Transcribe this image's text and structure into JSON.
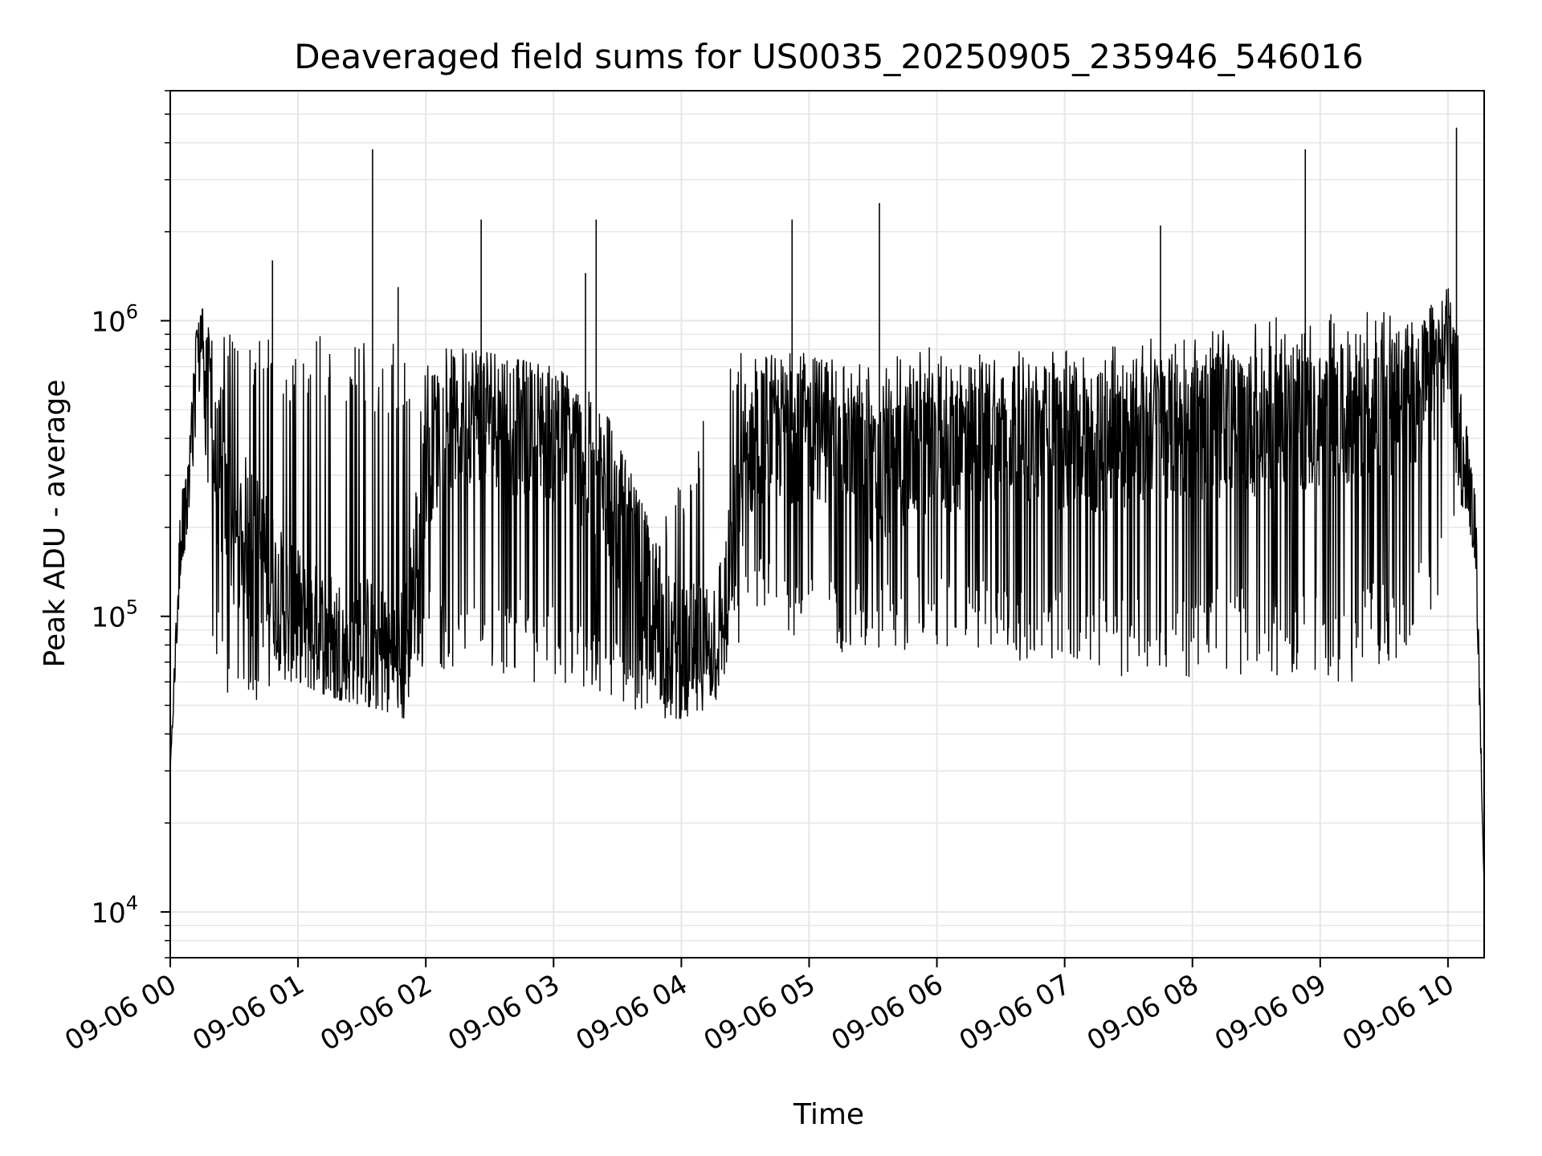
{
  "chart_data": {
    "type": "line",
    "title": "Deaveraged field sums for US0035_20250905_235946_546016",
    "xlabel": "Time",
    "ylabel": "Peak ADU - average",
    "yscale": "log",
    "ylim": [
      7000,
      6000000
    ],
    "xlim": [
      "09-06 00:00",
      "09-06 10:17"
    ],
    "x_ticks": [
      "09-06 00",
      "09-06 01",
      "09-06 02",
      "09-06 03",
      "09-06 04",
      "09-06 05",
      "09-06 06",
      "09-06 07",
      "09-06 08",
      "09-06 09",
      "09-06 10"
    ],
    "y_ticks": [
      {
        "value": 10000,
        "base": "10",
        "exp": "4"
      },
      {
        "value": 100000,
        "base": "10",
        "exp": "5"
      },
      {
        "value": 1000000,
        "base": "10",
        "exp": "6"
      }
    ],
    "grid": true,
    "line_color": "#000000",
    "grid_color": "#e6e6e6",
    "series": [
      {
        "x": [
          "09-06 00:00",
          "09-06 00:05",
          "09-06 00:08",
          "09-06 00:12",
          "09-06 00:15",
          "09-06 00:20",
          "09-06 00:25",
          "09-06 00:30",
          "09-06 00:35",
          "09-06 00:40",
          "09-06 00:45",
          "09-06 00:50",
          "09-06 00:55",
          "09-06 01:00",
          "09-06 01:10",
          "09-06 01:20",
          "09-06 01:30",
          "09-06 01:40",
          "09-06 01:50",
          "09-06 02:00",
          "09-06 02:10",
          "09-06 02:20",
          "09-06 02:30",
          "09-06 02:40",
          "09-06 02:50",
          "09-06 03:00",
          "09-06 03:10",
          "09-06 03:20",
          "09-06 03:30",
          "09-06 03:40",
          "09-06 03:50",
          "09-06 04:00",
          "09-06 04:10",
          "09-06 04:20",
          "09-06 04:30",
          "09-06 04:40",
          "09-06 04:50",
          "09-06 05:00",
          "09-06 05:15",
          "09-06 05:30",
          "09-06 05:45",
          "09-06 06:00",
          "09-06 06:15",
          "09-06 06:30",
          "09-06 06:45",
          "09-06 07:00",
          "09-06 07:15",
          "09-06 07:30",
          "09-06 07:45",
          "09-06 08:00",
          "09-06 08:15",
          "09-06 08:30",
          "09-06 08:45",
          "09-06 09:00",
          "09-06 09:15",
          "09-06 09:30",
          "09-06 09:45",
          "09-06 10:00",
          "09-06 10:05",
          "09-06 10:10",
          "09-06 10:13",
          "09-06 10:17"
        ],
        "values": [
          30000,
          200000,
          250000,
          600000,
          1000000,
          350000,
          250000,
          180000,
          200000,
          180000,
          150000,
          120000,
          100000,
          95000,
          85000,
          80000,
          80000,
          75000,
          70000,
          350000,
          450000,
          500000,
          500000,
          450000,
          450000,
          420000,
          380000,
          300000,
          220000,
          150000,
          90000,
          70000,
          75000,
          100000,
          350000,
          450000,
          420000,
          450000,
          400000,
          300000,
          350000,
          380000,
          400000,
          450000,
          420000,
          400000,
          380000,
          400000,
          450000,
          420000,
          450000,
          450000,
          480000,
          450000,
          480000,
          500000,
          550000,
          750000,
          450000,
          280000,
          200000,
          12000
        ],
        "band_low": [
          30000,
          150000,
          180000,
          400000,
          800000,
          60000,
          50000,
          55000,
          55000,
          50000,
          55000,
          65000,
          60000,
          60000,
          55000,
          52000,
          50000,
          48000,
          45000,
          70000,
          65000,
          70000,
          68000,
          62000,
          60000,
          58000,
          55000,
          52000,
          50000,
          48000,
          45000,
          45000,
          48000,
          50000,
          90000,
          95000,
          85000,
          80000,
          75000,
          72000,
          75000,
          78000,
          75000,
          72000,
          70000,
          68000,
          65000,
          62000,
          65000,
          62000,
          65000,
          60000,
          58000,
          60000,
          60000,
          65000,
          70000,
          150000,
          250000,
          200000,
          150000,
          12000
        ],
        "band_high": [
          30000,
          260000,
          300000,
          900000,
          1100000,
          900000,
          950000,
          900000,
          950000,
          900000,
          900000,
          880000,
          850000,
          850000,
          900000,
          900000,
          880000,
          850000,
          820000,
          800000,
          820000,
          800000,
          780000,
          750000,
          720000,
          700000,
          650000,
          550000,
          450000,
          250000,
          200000,
          300000,
          500000,
          850000,
          900000,
          850000,
          800000,
          800000,
          780000,
          750000,
          800000,
          820000,
          800000,
          780000,
          800000,
          800000,
          800000,
          850000,
          900000,
          900000,
          950000,
          1000000,
          1050000,
          1050000,
          1100000,
          1100000,
          1100000,
          1300000,
          900000,
          350000,
          250000,
          12000
        ]
      }
    ],
    "spikes": [
      {
        "x": "09-06 01:35",
        "value": 3800000
      },
      {
        "x": "09-06 02:26",
        "value": 2200000
      },
      {
        "x": "09-06 03:20",
        "value": 2200000
      },
      {
        "x": "09-06 04:52",
        "value": 2200000
      },
      {
        "x": "09-06 05:33",
        "value": 2500000
      },
      {
        "x": "09-06 07:45",
        "value": 2100000
      },
      {
        "x": "09-06 08:53",
        "value": 3800000
      },
      {
        "x": "09-06 10:04",
        "value": 4500000
      },
      {
        "x": "09-06 00:48",
        "value": 1600000
      },
      {
        "x": "09-06 01:47",
        "value": 1300000
      },
      {
        "x": "09-06 03:15",
        "value": 1450000
      }
    ]
  }
}
